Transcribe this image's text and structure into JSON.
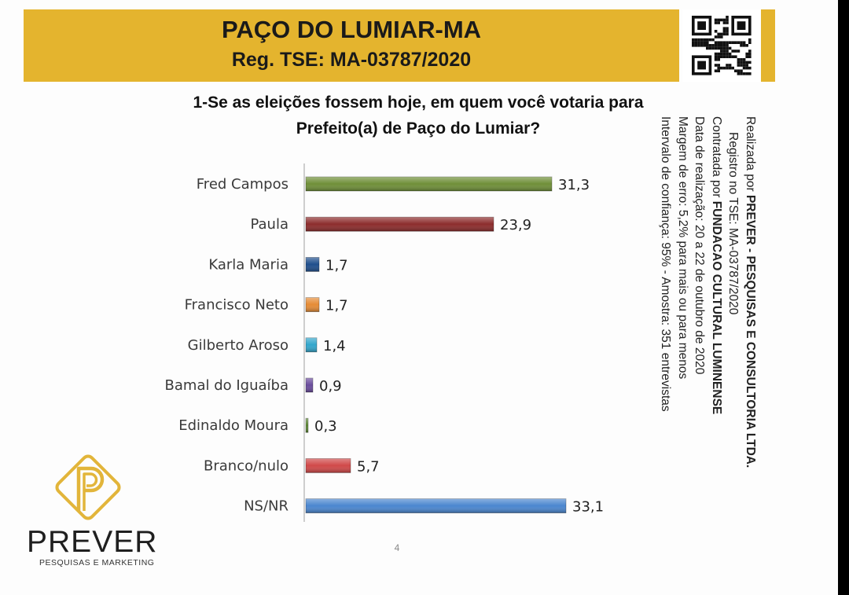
{
  "header": {
    "title": "PAÇO DO LUMIAR-MA",
    "registration": "Reg. TSE: MA-03787/2020"
  },
  "question": {
    "line1": "1-Se as eleições fossem hoje, em quem você votaria para",
    "line2": "Prefeito(a) de Paço do Lumiar?"
  },
  "chart_data": {
    "type": "bar",
    "orientation": "horizontal",
    "categories": [
      "Fred Campos",
      "Paula",
      "Karla Maria",
      "Francisco Neto",
      "Gilberto Aroso",
      "Bamal do Iguaíba",
      "Edinaldo Moura",
      "Branco/nulo",
      "NS/NR"
    ],
    "values": [
      31.3,
      23.9,
      1.7,
      1.7,
      1.4,
      0.9,
      0.3,
      5.7,
      33.1
    ],
    "value_labels": [
      "31,3",
      "23,9",
      "1,7",
      "1,7",
      "1,4",
      "0,9",
      "0,3",
      "5,7",
      "33,1"
    ],
    "colors": [
      "#6f8f38",
      "#8c2c2c",
      "#1f4e8c",
      "#e58b35",
      "#33a6cc",
      "#6a4c9c",
      "#5f8a37",
      "#d04848",
      "#4a86cf"
    ],
    "title": "",
    "xlabel": "",
    "ylabel": "",
    "grid": false,
    "legend": "none"
  },
  "side_note": {
    "line1_prefix": "Realizada por ",
    "line1_bold": "PREVER - PESQUISAS E CONSULTORIA LTDA.",
    "line2": "Registro no TSE: MA-03787/2020",
    "line3_prefix": "Contratada por ",
    "line3_bold": "FUNDACAO CULTURAL LUMINENSE",
    "line4": "Data de realização: 20 a 22 de outubro de 2020",
    "line5": "Margem de erro: 5,2% para mais ou para menos",
    "line6": "Intervalo de confiança: 95% - Amostra: 351 entrevistas"
  },
  "page_number": "4",
  "logo": {
    "name": "PREVER",
    "tagline": "PESQUISAS E MARKETING",
    "color": "#e2b53a"
  }
}
